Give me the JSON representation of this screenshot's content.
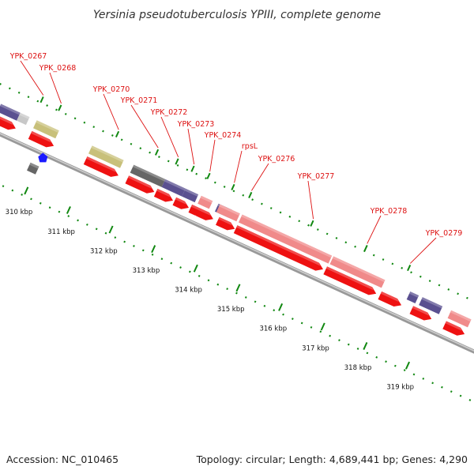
{
  "title": "Yersinia pseudotuberculosis YPIII, complete genome",
  "footer": {
    "accession": "Accession: NC_010465",
    "summary": "Topology: circular; Length: 4,689,441 bp; Genes: 4,290"
  },
  "colors": {
    "cds_red": "#ee1111",
    "pink": "#f08a8a",
    "olive": "#c8c07a",
    "slate": "#5a5090",
    "gray": "#666666",
    "light_gray": "#c8c8c8",
    "blue": "#1a1aff",
    "label_red": "#dd1111",
    "gc_green": "#118811",
    "backbone": "#888888"
  },
  "ticks": [
    {
      "label": "310 kbp"
    },
    {
      "label": "311 kbp"
    },
    {
      "label": "312 kbp"
    },
    {
      "label": "313 kbp"
    },
    {
      "label": "314 kbp"
    },
    {
      "label": "315 kbp"
    },
    {
      "label": "316 kbp"
    },
    {
      "label": "317 kbp"
    },
    {
      "label": "318 kbp"
    },
    {
      "label": "319 kbp"
    }
  ],
  "gene_labels": [
    {
      "text": "YPK_0267"
    },
    {
      "text": "YPK_0268"
    },
    {
      "text": "YPK_0270"
    },
    {
      "text": "YPK_0271"
    },
    {
      "text": "YPK_0272"
    },
    {
      "text": "YPK_0273"
    },
    {
      "text": "YPK_0274"
    },
    {
      "text": "rpsL"
    },
    {
      "text": "YPK_0276"
    },
    {
      "text": "YPK_0277"
    },
    {
      "text": "YPK_0278"
    },
    {
      "text": "YPK_0279"
    }
  ]
}
